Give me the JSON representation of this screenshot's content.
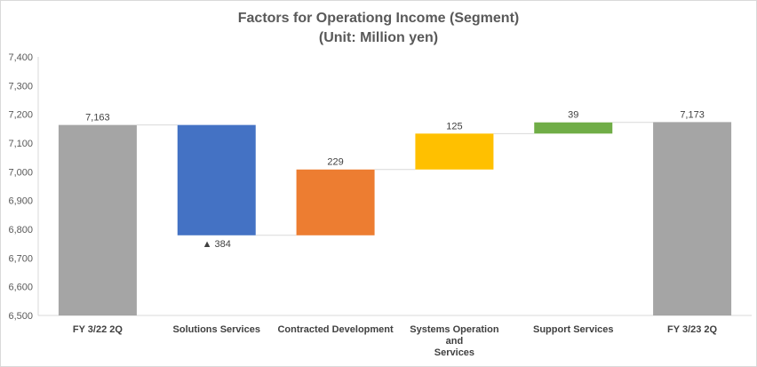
{
  "chart_data": {
    "type": "waterfall",
    "title": "Factors for Operationg Income (Segment)",
    "subtitle": "(Unit: Million yen)",
    "ylim": [
      6500,
      7400
    ],
    "yticks": [
      "6,500",
      "6,600",
      "6,700",
      "6,800",
      "6,900",
      "7,000",
      "7,100",
      "7,200",
      "7,300",
      "7,400"
    ],
    "categories": [
      [
        "FY 3/22 2Q"
      ],
      [
        "Solutions Services"
      ],
      [
        "Contracted Development"
      ],
      [
        "Systems Operation",
        "and",
        "Services"
      ],
      [
        "Support Services"
      ],
      [
        "FY 3/23 2Q"
      ]
    ],
    "bars": [
      {
        "kind": "total",
        "base": 6500,
        "value": 7163,
        "label": "7,163",
        "color": "#a5a5a5"
      },
      {
        "kind": "delta",
        "start": 7163,
        "end": 6779,
        "label": "▲ 384",
        "color": "#4472c4"
      },
      {
        "kind": "delta",
        "start": 6779,
        "end": 7008,
        "label": "229",
        "color": "#ed7d31"
      },
      {
        "kind": "delta",
        "start": 7008,
        "end": 7133,
        "label": "125",
        "color": "#ffc000"
      },
      {
        "kind": "delta",
        "start": 7133,
        "end": 7172,
        "label": "39",
        "color": "#70ad47"
      },
      {
        "kind": "total",
        "base": 6500,
        "value": 7173,
        "label": "7,173",
        "color": "#a5a5a5"
      }
    ],
    "grid": false,
    "legend": "none"
  }
}
